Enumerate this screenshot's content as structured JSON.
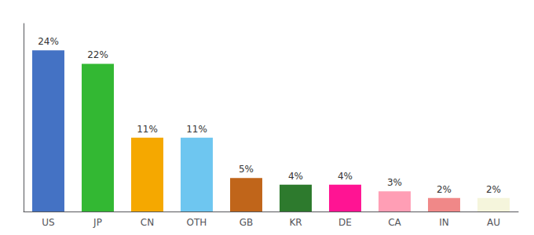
{
  "chart_data": {
    "type": "bar",
    "categories": [
      "US",
      "JP",
      "CN",
      "OTH",
      "GB",
      "KR",
      "DE",
      "CA",
      "IN",
      "AU"
    ],
    "values": [
      24,
      22,
      11,
      11,
      5,
      4,
      4,
      3,
      2,
      2
    ],
    "value_labels": [
      "24%",
      "22%",
      "11%",
      "11%",
      "5%",
      "4%",
      "4%",
      "3%",
      "2%",
      "2%"
    ],
    "colors": [
      "#4472c4",
      "#33b833",
      "#f5a800",
      "#6ec6f0",
      "#c0651a",
      "#2d7a2d",
      "#ff1493",
      "#ff9eb5",
      "#f08888",
      "#f5f5dc"
    ],
    "ylim": [
      0,
      28
    ],
    "grid": false,
    "data_labels": true,
    "tick_labels": "x"
  }
}
